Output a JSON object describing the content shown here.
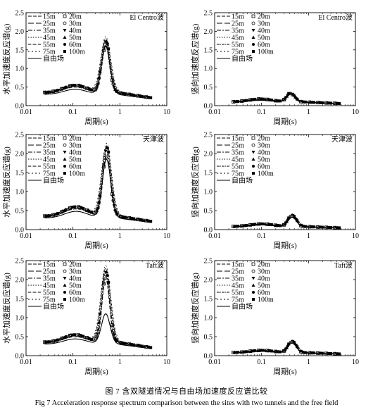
{
  "caption": {
    "cn": "图 7   含双隧道情况与自由场加速度反应谱比较",
    "en": "Fig 7   Acceleration response spectrum comparison between the sites with two tunnels and the free field"
  },
  "legend_labels": {
    "left_col": [
      "15m",
      "25m",
      "35m",
      "45m",
      "55m",
      "75m",
      "自由场"
    ],
    "right_col": [
      "20m",
      "30m",
      "40m",
      "50m",
      "60m",
      "100m"
    ]
  },
  "chart_data": [
    {
      "type": "line",
      "panel": "a",
      "wave": "El Centro波",
      "xlabel": "周期(s)",
      "ylabel": "水平加速度反应谱(g)",
      "xscale": "log",
      "xlim": [
        0.01,
        10
      ],
      "ylim": [
        0,
        2.5
      ],
      "xticks": [
        "0.01",
        "0.1",
        "1",
        "10"
      ],
      "yticks": [
        "0.0",
        "0.5",
        "1.0",
        "1.5",
        "2.0",
        "2.5"
      ],
      "series_group": "tunnel depths 15m–100m",
      "peak_period": 0.5,
      "peak_value": 1.8,
      "base_value": 0.35,
      "band_value": 0.55,
      "free_field": {
        "name": "自由场",
        "peak_value": 1.6,
        "base_value": 0.3
      }
    },
    {
      "type": "line",
      "panel": "b",
      "wave": "El Centro波",
      "xlabel": "周期(s)",
      "ylabel": "竖向加速度反应谱(g)",
      "xscale": "log",
      "xlim": [
        0.01,
        10
      ],
      "ylim": [
        0,
        2.5
      ],
      "xticks": [
        "0.01",
        "0.1",
        "1",
        "10"
      ],
      "yticks": [
        "0.0",
        "0.5",
        "1.0",
        "1.5",
        "2.0",
        "2.5"
      ],
      "series_group": "tunnel depths 15m–100m",
      "peak_period": 0.42,
      "peak_value": 0.35,
      "base_value": 0.1,
      "band_value": 0.18,
      "free_field": {
        "name": "自由场",
        "peak_value": 0.3,
        "base_value": 0.09
      }
    },
    {
      "type": "line",
      "panel": "c",
      "wave": "天津波",
      "xlabel": "周期(s)",
      "ylabel": "水平加速度反应谱(g)",
      "xscale": "log",
      "xlim": [
        0.01,
        10
      ],
      "ylim": [
        0,
        2.5
      ],
      "xticks": [
        "0.01",
        "0.1",
        "1",
        "10"
      ],
      "yticks": [
        "0.0",
        "0.5",
        "1.0",
        "1.5",
        "2.0",
        "2.5"
      ],
      "series_group": "tunnel depths 15m–100m",
      "peak_period": 0.52,
      "peak_value": 2.2,
      "base_value": 0.35,
      "band_value": 0.6,
      "free_field": {
        "name": "自由场",
        "peak_value": 1.85,
        "base_value": 0.3
      }
    },
    {
      "type": "line",
      "panel": "d",
      "wave": "天津波",
      "xlabel": "周期(s)",
      "ylabel": "竖向加速度反应谱(g)",
      "xscale": "log",
      "xlim": [
        0.01,
        10
      ],
      "ylim": [
        0,
        2.5
      ],
      "xticks": [
        "0.01",
        "0.1",
        "1",
        "10"
      ],
      "yticks": [
        "0.0",
        "0.5",
        "1.0",
        "1.5",
        "2.0",
        "2.5"
      ],
      "series_group": "tunnel depths 15m–100m",
      "peak_period": 0.45,
      "peak_value": 0.4,
      "base_value": 0.08,
      "band_value": 0.15,
      "free_field": {
        "name": "自由场",
        "peak_value": 0.32,
        "base_value": 0.07
      }
    },
    {
      "type": "line",
      "panel": "e",
      "wave": "Taft波",
      "xlabel": "周期(s)",
      "ylabel": "水平加速度反应谱(g)",
      "xscale": "log",
      "xlim": [
        0.01,
        10
      ],
      "ylim": [
        0,
        2.5
      ],
      "xticks": [
        "0.01",
        "0.1",
        "1",
        "10"
      ],
      "yticks": [
        "0.0",
        "0.5",
        "1.0",
        "1.5",
        "2.0",
        "2.5"
      ],
      "series_group": "tunnel depths 15m–100m",
      "peak_period": 0.5,
      "peak_value": 2.3,
      "base_value": 0.35,
      "band_value": 0.55,
      "free_field": {
        "name": "自由场",
        "peak_value": 1.1,
        "base_value": 0.3
      }
    },
    {
      "type": "line",
      "panel": "f",
      "wave": "Taft波",
      "xlabel": "周期(s)",
      "ylabel": "竖向加速度反应谱(g)",
      "xscale": "log",
      "xlim": [
        0.01,
        10
      ],
      "ylim": [
        0,
        2.5
      ],
      "xticks": [
        "0.01",
        "0.1",
        "1",
        "10"
      ],
      "yticks": [
        "0.0",
        "0.5",
        "1.0",
        "1.5",
        "2.0",
        "2.5"
      ],
      "series_group": "tunnel depths 15m–100m",
      "peak_period": 0.45,
      "peak_value": 0.4,
      "base_value": 0.08,
      "band_value": 0.14,
      "free_field": {
        "name": "自由场",
        "peak_value": 0.33,
        "base_value": 0.07
      }
    }
  ]
}
